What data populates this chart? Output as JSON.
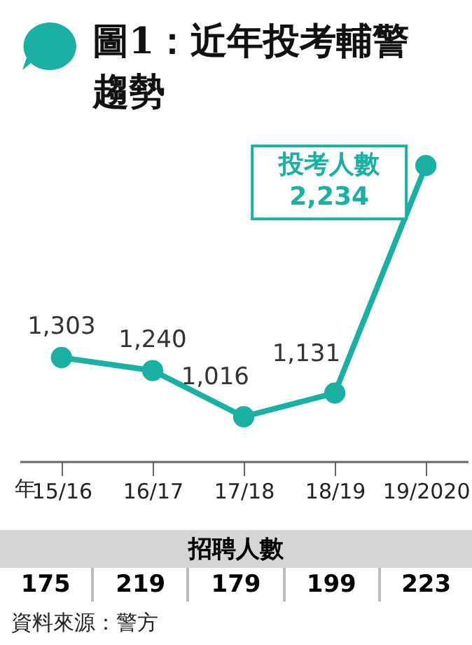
{
  "chart_data": {
    "type": "line",
    "title": "圖1：近年投考輔警趨勢",
    "xlabel": "年",
    "categories": [
      "15/16",
      "16/17",
      "17/18",
      "18/19",
      "19/2020"
    ],
    "series": [
      {
        "name": "投考人數",
        "color": "#1bb0a4",
        "values": [
          1303,
          1240,
          1016,
          1131,
          2234
        ],
        "value_labels": [
          "1,303",
          "1,240",
          "1,016",
          "1,131",
          "2,234"
        ]
      }
    ],
    "ylim": [
      800,
      2350
    ],
    "tick_labels": "x",
    "marker": "circle",
    "annotations": [
      "招聘人數",
      "175",
      "219",
      "179",
      "199",
      "223",
      "資料來源：警方"
    ]
  }
}
